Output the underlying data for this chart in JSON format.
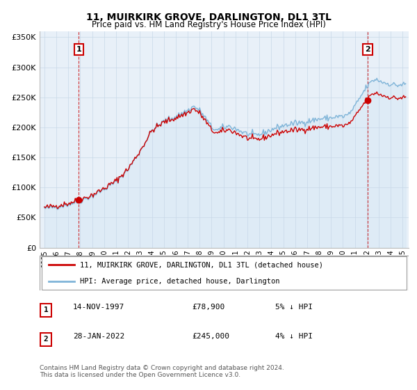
{
  "title": "11, MUIRKIRK GROVE, DARLINGTON, DL1 3TL",
  "subtitle": "Price paid vs. HM Land Registry's House Price Index (HPI)",
  "ylim": [
    0,
    360000
  ],
  "yticks": [
    0,
    50000,
    100000,
    150000,
    200000,
    250000,
    300000,
    350000
  ],
  "ytick_labels": [
    "£0",
    "£50K",
    "£100K",
    "£150K",
    "£200K",
    "£250K",
    "£300K",
    "£350K"
  ],
  "line_color_hpi": "#7fb4d8",
  "fill_color_hpi": "#d6e8f5",
  "line_color_price": "#cc0000",
  "marker_color": "#cc0000",
  "dashed_color": "#cc0000",
  "legend_label_price": "11, MUIRKIRK GROVE, DARLINGTON, DL1 3TL (detached house)",
  "legend_label_hpi": "HPI: Average price, detached house, Darlington",
  "annotation1_label": "1",
  "annotation1_date": "14-NOV-1997",
  "annotation1_price": "£78,900",
  "annotation1_pct": "5% ↓ HPI",
  "annotation2_label": "2",
  "annotation2_date": "28-JAN-2022",
  "annotation2_price": "£245,000",
  "annotation2_pct": "4% ↓ HPI",
  "footnote": "Contains HM Land Registry data © Crown copyright and database right 2024.\nThis data is licensed under the Open Government Licence v3.0.",
  "sale1_year": 1997.87,
  "sale1_price": 78900,
  "sale2_year": 2022.07,
  "sale2_price": 245000,
  "background_color": "#ffffff",
  "chart_bg_color": "#e8f0f8",
  "grid_color": "#c8d8e8",
  "box_color": "#cc0000"
}
